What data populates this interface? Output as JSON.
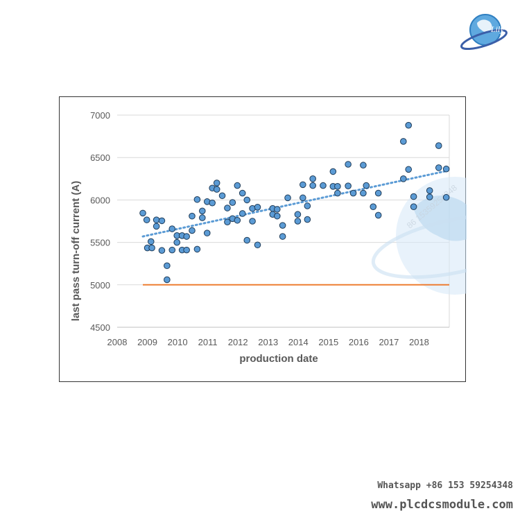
{
  "chart_data": {
    "type": "scatter",
    "xlabel": "production date",
    "ylabel": "last pass turn-off current (A)",
    "xlim": [
      2008,
      2019
    ],
    "ylim": [
      4500,
      7000
    ],
    "x_ticks": [
      "2008",
      "2009",
      "2010",
      "2011",
      "2012",
      "2013",
      "2014",
      "2015",
      "2016",
      "2017",
      "2018"
    ],
    "y_ticks": [
      "4500",
      "5000",
      "5500",
      "6000",
      "6500",
      "7000"
    ],
    "grid": "horizontal",
    "series": [
      {
        "name": "measurements",
        "color": "#5b9bd5",
        "points": [
          [
            2008.85,
            5845
          ],
          [
            2008.98,
            5765
          ],
          [
            2009.0,
            5435
          ],
          [
            2009.12,
            5510
          ],
          [
            2009.15,
            5435
          ],
          [
            2009.3,
            5765
          ],
          [
            2009.3,
            5690
          ],
          [
            2009.48,
            5755
          ],
          [
            2009.48,
            5405
          ],
          [
            2009.65,
            5225
          ],
          [
            2009.65,
            5060
          ],
          [
            2009.82,
            5660
          ],
          [
            2009.82,
            5410
          ],
          [
            2009.98,
            5500
          ],
          [
            2009.98,
            5580
          ],
          [
            2010.15,
            5580
          ],
          [
            2010.15,
            5410
          ],
          [
            2010.3,
            5570
          ],
          [
            2010.3,
            5410
          ],
          [
            2010.48,
            5810
          ],
          [
            2010.48,
            5640
          ],
          [
            2010.65,
            6005
          ],
          [
            2010.65,
            5420
          ],
          [
            2010.82,
            5870
          ],
          [
            2010.82,
            5790
          ],
          [
            2010.98,
            5980
          ],
          [
            2010.98,
            5610
          ],
          [
            2011.15,
            6140
          ],
          [
            2011.15,
            5965
          ],
          [
            2011.3,
            6200
          ],
          [
            2011.3,
            6125
          ],
          [
            2011.48,
            6050
          ],
          [
            2011.65,
            5905
          ],
          [
            2011.65,
            5740
          ],
          [
            2011.82,
            5970
          ],
          [
            2011.82,
            5780
          ],
          [
            2011.98,
            6170
          ],
          [
            2011.98,
            5760
          ],
          [
            2012.15,
            6080
          ],
          [
            2012.15,
            5840
          ],
          [
            2012.3,
            6000
          ],
          [
            2012.3,
            5525
          ],
          [
            2012.48,
            5900
          ],
          [
            2012.48,
            5750
          ],
          [
            2012.65,
            5915
          ],
          [
            2012.65,
            5470
          ],
          [
            2013.15,
            5900
          ],
          [
            2013.15,
            5830
          ],
          [
            2013.3,
            5890
          ],
          [
            2013.3,
            5810
          ],
          [
            2013.48,
            5700
          ],
          [
            2013.48,
            5570
          ],
          [
            2013.65,
            6025
          ],
          [
            2013.98,
            5830
          ],
          [
            2013.98,
            5750
          ],
          [
            2014.15,
            6180
          ],
          [
            2014.15,
            6025
          ],
          [
            2014.3,
            5930
          ],
          [
            2014.3,
            5770
          ],
          [
            2014.48,
            6250
          ],
          [
            2014.48,
            6170
          ],
          [
            2014.82,
            6170
          ],
          [
            2015.15,
            6335
          ],
          [
            2015.15,
            6160
          ],
          [
            2015.3,
            6160
          ],
          [
            2015.3,
            6080
          ],
          [
            2015.65,
            6420
          ],
          [
            2015.65,
            6165
          ],
          [
            2015.82,
            6080
          ],
          [
            2016.15,
            6410
          ],
          [
            2016.15,
            6080
          ],
          [
            2016.25,
            6170
          ],
          [
            2016.48,
            5920
          ],
          [
            2016.65,
            6080
          ],
          [
            2016.65,
            5820
          ],
          [
            2017.48,
            6690
          ],
          [
            2017.48,
            6250
          ],
          [
            2017.65,
            6880
          ],
          [
            2017.65,
            6360
          ],
          [
            2017.82,
            6040
          ],
          [
            2017.82,
            5920
          ],
          [
            2018.35,
            6110
          ],
          [
            2018.35,
            6035
          ],
          [
            2018.65,
            6640
          ],
          [
            2018.65,
            6380
          ],
          [
            2018.9,
            6365
          ],
          [
            2018.9,
            6030
          ]
        ]
      }
    ],
    "trendline": {
      "style": "dotted",
      "color": "#5b9bd5",
      "from": [
        2008.85,
        5570
      ],
      "to": [
        2018.95,
        6345
      ]
    },
    "reference_line": {
      "value": 5000,
      "color": "#ed7d31",
      "from_x": 2008.85,
      "to_x": 2019
    }
  },
  "footer": {
    "whatsapp": "Whatsapp +86 153 59254348",
    "website": "www.plcdcsmodule.com"
  },
  "logo": {
    "text": "Lily"
  },
  "watermark": {
    "phone": "86 15359254348"
  }
}
